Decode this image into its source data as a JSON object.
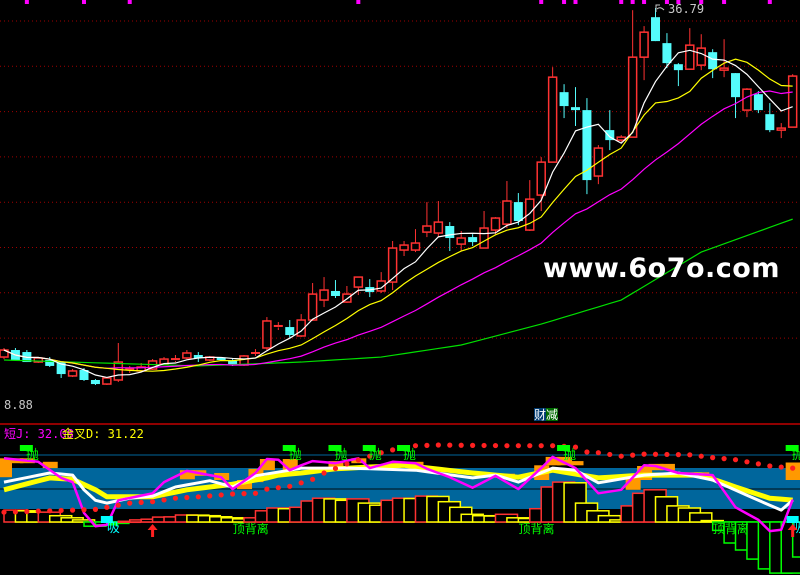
{
  "chart_data": {
    "type": "candlestick",
    "price_range": [
      8.88,
      36.79
    ],
    "labels": {
      "low_price": "8.88",
      "high_price": "36.79",
      "indicator_j": "短J: 32.08",
      "indicator_d": "金叉D: 31.22",
      "finance_tag_1": "财",
      "finance_tag_2": "减",
      "sell": "抛",
      "buy": "吸",
      "divergence": "顶背离",
      "watermark": "www.6o7o.com"
    },
    "colors": {
      "up": "#ff3232",
      "down": "#54fcfc",
      "ma5": "#ffffff",
      "ma10": "#ffff00",
      "ma20": "#ff00ff",
      "ma_long": "#00e000",
      "grid": "#a00000",
      "band": "#00669c",
      "orange": "#ff9900",
      "signal_green": "#00ff00",
      "marker": "#ff00ff"
    },
    "candles": [
      [
        10.95,
        11.47,
        11.62,
        10.8
      ],
      [
        11.47,
        10.73,
        11.62,
        10.73
      ],
      [
        11.32,
        10.58,
        11.47,
        10.58
      ],
      [
        10.58,
        10.88,
        10.95,
        10.51
      ],
      [
        10.73,
        10.29,
        10.95,
        10.21
      ],
      [
        10.58,
        9.69,
        10.66,
        9.4
      ],
      [
        9.55,
        9.92,
        10.06,
        9.47
      ],
      [
        9.99,
        9.25,
        10.14,
        9.18
      ],
      [
        9.25,
        8.95,
        9.32,
        8.88
      ],
      [
        8.95,
        9.4,
        9.47,
        8.88
      ],
      [
        9.25,
        10.58,
        11.99,
        9.1
      ],
      [
        9.92,
        10.06,
        10.29,
        9.77
      ],
      [
        9.92,
        10.21,
        10.51,
        9.84
      ],
      [
        10.06,
        10.66,
        10.8,
        9.99
      ],
      [
        10.43,
        10.8,
        10.95,
        10.36
      ],
      [
        10.66,
        10.8,
        11.1,
        10.58
      ],
      [
        10.88,
        11.25,
        11.47,
        10.8
      ],
      [
        11.1,
        10.88,
        11.32,
        10.58
      ],
      [
        10.73,
        10.95,
        11.03,
        10.66
      ],
      [
        10.88,
        10.73,
        10.95,
        10.66
      ],
      [
        10.66,
        10.43,
        10.88,
        10.29
      ],
      [
        10.36,
        11.03,
        11.1,
        10.29
      ],
      [
        11.18,
        11.25,
        11.54,
        11.03
      ],
      [
        11.62,
        13.62,
        13.91,
        11.47
      ],
      [
        13.14,
        13.25,
        13.54,
        12.95
      ],
      [
        13.17,
        12.58,
        13.69,
        12.36
      ],
      [
        12.51,
        13.69,
        14.13,
        12.43
      ],
      [
        13.69,
        15.61,
        16.43,
        13.62
      ],
      [
        15.17,
        15.91,
        16.87,
        14.65
      ],
      [
        15.84,
        15.47,
        16.65,
        15.32
      ],
      [
        15.02,
        15.61,
        16.21,
        14.95
      ],
      [
        16.13,
        16.87,
        16.87,
        15.54
      ],
      [
        16.13,
        15.76,
        16.72,
        15.39
      ],
      [
        15.84,
        16.58,
        17.24,
        15.69
      ],
      [
        16.5,
        19.02,
        19.54,
        15.91
      ],
      [
        18.87,
        19.24,
        19.54,
        18.43
      ],
      [
        18.87,
        19.39,
        20.42,
        18.72
      ],
      [
        20.2,
        20.65,
        22.42,
        19.83
      ],
      [
        20.13,
        20.94,
        22.5,
        19.83
      ],
      [
        20.65,
        19.76,
        20.94,
        18.8
      ],
      [
        19.31,
        19.76,
        20.28,
        18.8
      ],
      [
        19.83,
        19.46,
        20.05,
        19.17
      ],
      [
        19.02,
        20.5,
        21.76,
        19.02
      ],
      [
        20.35,
        21.24,
        21.31,
        20.05
      ],
      [
        20.79,
        22.5,
        23.98,
        20.5
      ],
      [
        22.42,
        21.02,
        23.09,
        20.72
      ],
      [
        20.35,
        22.64,
        24.05,
        20.28
      ],
      [
        22.94,
        25.38,
        25.75,
        21.76
      ],
      [
        25.38,
        31.67,
        32.41,
        25.38
      ],
      [
        30.56,
        29.53,
        31.15,
        28.64
      ],
      [
        29.45,
        29.23,
        30.93,
        28.05
      ],
      [
        29.23,
        24.05,
        30.12,
        23.01
      ],
      [
        24.35,
        26.42,
        26.64,
        23.75
      ],
      [
        27.75,
        27.01,
        29.23,
        26.27
      ],
      [
        27.01,
        27.23,
        27.38,
        26.86
      ],
      [
        27.23,
        33.15,
        36.63,
        27.23
      ],
      [
        33.15,
        35.0,
        35.45,
        31.45
      ],
      [
        36.11,
        34.34,
        36.79,
        34.34
      ],
      [
        34.19,
        32.71,
        34.93,
        32.34
      ],
      [
        32.63,
        32.19,
        32.71,
        31.01
      ],
      [
        32.26,
        34.04,
        35.3,
        32.26
      ],
      [
        32.56,
        33.82,
        34.85,
        32.19
      ],
      [
        33.52,
        32.26,
        33.74,
        31.6
      ],
      [
        32.19,
        32.34,
        34.48,
        31.67
      ],
      [
        31.97,
        30.19,
        31.97,
        28.64
      ],
      [
        29.23,
        30.78,
        30.86,
        28.71
      ],
      [
        30.41,
        29.23,
        30.64,
        29.01
      ],
      [
        28.93,
        27.75,
        29.75,
        27.6
      ],
      [
        27.75,
        27.9,
        28.27,
        27.16
      ],
      [
        27.97,
        31.75,
        31.89,
        27.97
      ]
    ],
    "candle_fields": [
      "open",
      "close",
      "high",
      "low"
    ],
    "ma_periods": {
      "white": 5,
      "yellow": 10,
      "magenta": 20
    },
    "ma_long_points": [
      [
        0,
        10.73
      ],
      [
        17,
        10.29
      ],
      [
        26,
        10.58
      ],
      [
        33,
        10.95
      ],
      [
        40,
        11.84
      ],
      [
        47,
        13.39
      ],
      [
        54,
        15.17
      ],
      [
        61,
        18.72
      ],
      [
        69,
        21.16
      ]
    ],
    "top_marker_indices": [
      2,
      7,
      11,
      31,
      47,
      49,
      50,
      54,
      55,
      56,
      58,
      59,
      61,
      63,
      67
    ],
    "indicator": {
      "range": [
        -100,
        100
      ],
      "J_points": [
        [
          0,
          91
        ],
        [
          3,
          86
        ],
        [
          5,
          63
        ],
        [
          6,
          57
        ],
        [
          7,
          13
        ],
        [
          8,
          -6
        ],
        [
          9,
          -4
        ],
        [
          10,
          31
        ],
        [
          13,
          41
        ],
        [
          14,
          57
        ],
        [
          16,
          73
        ],
        [
          19,
          64
        ],
        [
          20,
          47
        ],
        [
          22,
          70
        ],
        [
          23,
          90
        ],
        [
          24,
          89
        ],
        [
          25,
          74
        ],
        [
          26,
          81
        ],
        [
          27,
          87
        ],
        [
          29,
          84
        ],
        [
          31,
          91
        ],
        [
          32,
          77
        ],
        [
          34,
          86
        ],
        [
          36,
          84
        ],
        [
          37,
          76
        ],
        [
          39,
          64
        ],
        [
          41,
          49
        ],
        [
          43,
          66
        ],
        [
          45,
          47
        ],
        [
          47,
          77
        ],
        [
          48,
          93
        ],
        [
          50,
          77
        ],
        [
          52,
          41
        ],
        [
          54,
          46
        ],
        [
          56,
          81
        ],
        [
          57,
          80
        ],
        [
          59,
          70
        ],
        [
          62,
          67
        ],
        [
          64,
          21
        ],
        [
          66,
          3
        ],
        [
          67,
          -13
        ],
        [
          68,
          -11
        ],
        [
          69,
          32.08
        ]
      ],
      "K_points": [
        [
          0,
          57
        ],
        [
          4,
          70
        ],
        [
          6,
          67
        ],
        [
          7,
          46
        ],
        [
          8,
          31
        ],
        [
          9,
          27
        ],
        [
          11,
          34
        ],
        [
          13,
          37
        ],
        [
          15,
          50
        ],
        [
          18,
          59
        ],
        [
          20,
          50
        ],
        [
          22,
          66
        ],
        [
          25,
          74
        ],
        [
          26,
          77
        ],
        [
          30,
          77
        ],
        [
          36,
          74
        ],
        [
          41,
          63
        ],
        [
          43,
          67
        ],
        [
          45,
          57
        ],
        [
          48,
          77
        ],
        [
          50,
          74
        ],
        [
          52,
          56
        ],
        [
          56,
          67
        ],
        [
          59,
          70
        ],
        [
          62,
          60
        ],
        [
          66,
          31
        ],
        [
          68,
          17
        ],
        [
          69,
          31
        ]
      ],
      "D_points": [
        [
          0,
          46
        ],
        [
          4,
          63
        ],
        [
          6,
          61
        ],
        [
          8,
          46
        ],
        [
          9,
          36
        ],
        [
          13,
          36
        ],
        [
          16,
          46
        ],
        [
          20,
          54
        ],
        [
          23,
          63
        ],
        [
          24,
          67
        ],
        [
          26,
          70
        ],
        [
          29,
          76
        ],
        [
          35,
          81
        ],
        [
          41,
          70
        ],
        [
          45,
          64
        ],
        [
          48,
          74
        ],
        [
          52,
          63
        ],
        [
          56,
          67
        ],
        [
          61,
          67
        ],
        [
          64,
          50
        ],
        [
          67,
          34
        ],
        [
          69,
          31.22
        ]
      ],
      "dot_points": [
        [
          0,
          14
        ],
        [
          8,
          18
        ],
        [
          9,
          21
        ],
        [
          11,
          27
        ],
        [
          13,
          29
        ],
        [
          15,
          34
        ],
        [
          17,
          36
        ],
        [
          20,
          40
        ],
        [
          22,
          41
        ],
        [
          23,
          47
        ],
        [
          25,
          51
        ],
        [
          26,
          56
        ],
        [
          27,
          61
        ],
        [
          28,
          70
        ],
        [
          30,
          83
        ],
        [
          32,
          94
        ],
        [
          33,
          99
        ],
        [
          34,
          103
        ],
        [
          36,
          109
        ],
        [
          38,
          110
        ],
        [
          44,
          109
        ],
        [
          48,
          109
        ],
        [
          50,
          107
        ],
        [
          51,
          100
        ],
        [
          52,
          99
        ],
        [
          54,
          94
        ],
        [
          56,
          97
        ],
        [
          60,
          96
        ],
        [
          62,
          92
        ],
        [
          64,
          89
        ],
        [
          67,
          80
        ],
        [
          69,
          77
        ]
      ],
      "bars": [
        17,
        16,
        14,
        14,
        9,
        6,
        3,
        -6,
        -4,
        -2,
        1,
        3,
        4,
        7,
        7.3,
        10,
        9.8,
        9,
        7.5,
        6,
        4.5,
        6,
        16,
        20,
        19,
        21,
        30,
        34,
        33,
        31,
        33,
        27,
        24,
        31,
        34,
        33.5,
        37,
        36.5,
        29,
        21,
        11,
        9,
        8.5,
        11,
        6,
        5,
        19,
        50,
        57,
        56,
        27,
        16,
        9,
        3,
        23,
        41,
        46,
        36,
        23,
        20,
        13,
        2,
        -12,
        -30,
        -40,
        -53,
        -67,
        -73,
        -73,
        -50
      ],
      "orange_blocks": [
        [
          0,
          91,
          64
        ],
        [
          1,
          91,
          84
        ],
        [
          2,
          91,
          84
        ],
        [
          4,
          86,
          77
        ],
        [
          16,
          74,
          61
        ],
        [
          17,
          74,
          66
        ],
        [
          19,
          70,
          60
        ],
        [
          21,
          60,
          47
        ],
        [
          22,
          76,
          57
        ],
        [
          23,
          90,
          74
        ],
        [
          25,
          90,
          74
        ],
        [
          29,
          87,
          79
        ],
        [
          31,
          91,
          84
        ],
        [
          34,
          84,
          79
        ],
        [
          36,
          86,
          80
        ],
        [
          44,
          69,
          63
        ],
        [
          47,
          81,
          60
        ],
        [
          48,
          93,
          81
        ],
        [
          49,
          93,
          81
        ],
        [
          50,
          87,
          81
        ],
        [
          55,
          64,
          46
        ],
        [
          56,
          80,
          60
        ],
        [
          57,
          83,
          74
        ],
        [
          58,
          83,
          74
        ],
        [
          60,
          71,
          66
        ],
        [
          61,
          71,
          66
        ],
        [
          69,
          85,
          60
        ]
      ],
      "sell_indices": [
        2,
        25,
        29,
        32,
        35,
        49,
        69
      ],
      "buy_indices": [
        9,
        69
      ],
      "up_arrow_indices": [
        13,
        69
      ],
      "divergence_indices": [
        21.5,
        46.5,
        63.5
      ]
    }
  }
}
